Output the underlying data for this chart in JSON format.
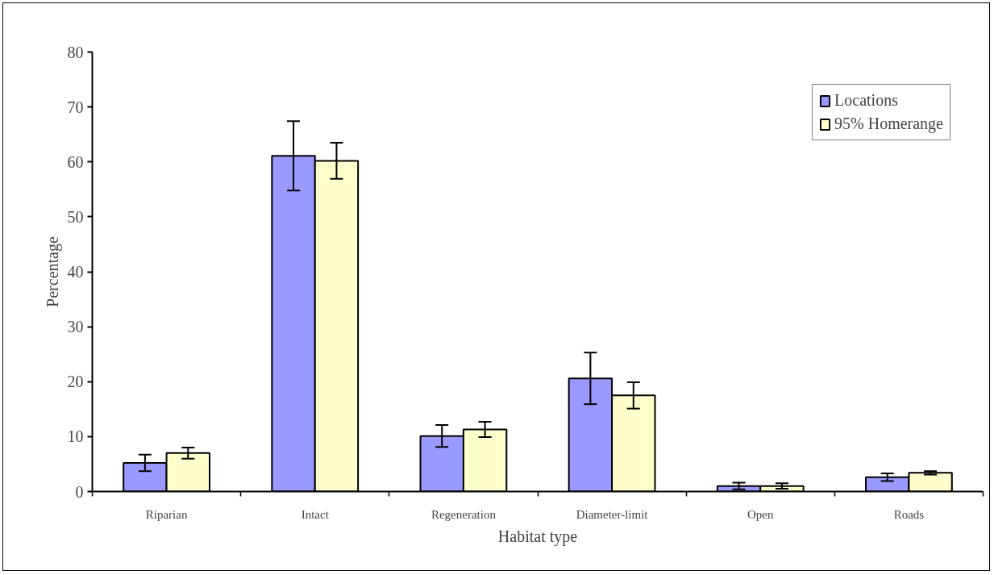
{
  "chart_data": {
    "type": "bar",
    "xlabel": "Habitat type",
    "ylabel": "Percentage",
    "categories": [
      "Riparian",
      "Intact",
      "Regeneration",
      "Diameter-limit",
      "Open",
      "Roads"
    ],
    "series": [
      {
        "name": "Locations",
        "color": "#9999ff",
        "values": [
          5.2,
          61.1,
          10.1,
          20.6,
          1.0,
          2.6
        ],
        "errors": [
          1.5,
          6.3,
          2.0,
          4.7,
          0.6,
          0.7
        ]
      },
      {
        "name": "95% Homerange",
        "color": "#ffffcc",
        "values": [
          7.0,
          60.2,
          11.3,
          17.5,
          1.0,
          3.4
        ],
        "errors": [
          1.0,
          3.3,
          1.4,
          2.4,
          0.5,
          0.3
        ]
      }
    ],
    "ylim": [
      0,
      80
    ],
    "yticks": [
      0,
      10,
      20,
      30,
      40,
      50,
      60,
      70,
      80
    ],
    "grid": false,
    "legend": "top right"
  }
}
